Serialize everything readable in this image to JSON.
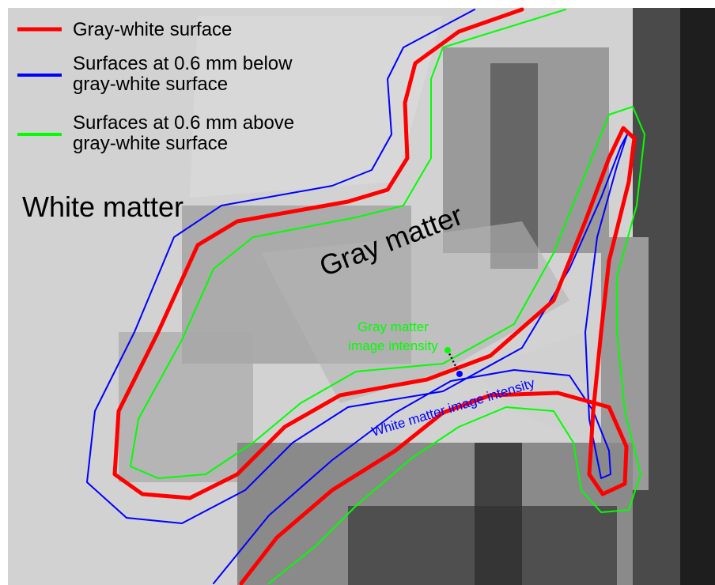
{
  "legend": [
    {
      "lines": [
        "Gray-white surface"
      ],
      "color": "#ff0000"
    },
    {
      "lines": [
        "Surfaces at 0.6 mm below",
        "gray-white surface"
      ],
      "color": "#0000ff"
    },
    {
      "lines": [
        "Surfaces at 0.6 mm above",
        "gray-white surface"
      ],
      "color": "#00ff00"
    }
  ],
  "labels": {
    "white_matter": "White matter",
    "gray_matter": "Gray matter",
    "gray_matter_intensity": [
      "Gray matter",
      "image intensity"
    ],
    "white_matter_intensity": "White matter image intensity"
  }
}
